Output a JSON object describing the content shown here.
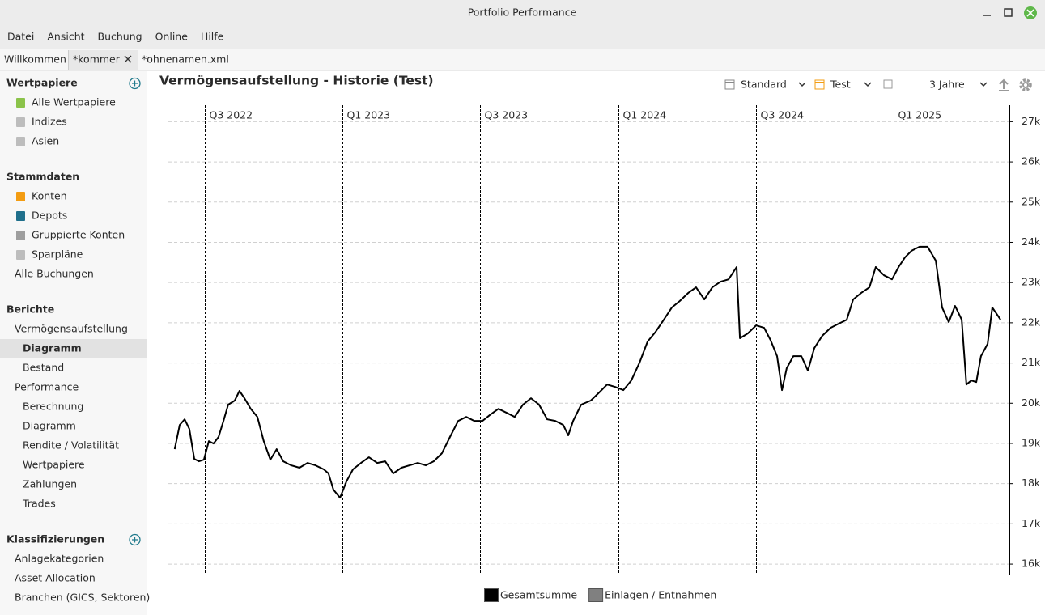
{
  "window": {
    "title": "Portfolio Performance"
  },
  "menu": [
    "Datei",
    "Ansicht",
    "Buchung",
    "Online",
    "Hilfe"
  ],
  "tabs": [
    "Willkommen",
    "*kommer",
    "*ohnenamen.xml"
  ],
  "sidebar": [
    {
      "title": "Wertpapiere",
      "items": [
        {
          "label": "Alle Wertpapiere",
          "level": 1,
          "icon": "#8bc34a"
        },
        {
          "label": "Indizes",
          "level": 1,
          "icon": "#bdbdbd"
        },
        {
          "label": "Asien",
          "level": 1,
          "icon": "#bdbdbd"
        }
      ]
    },
    {
      "title": "Stammdaten",
      "items": [
        {
          "label": "Konten",
          "level": 1,
          "icon": "#f39c12"
        },
        {
          "label": "Depots",
          "level": 1,
          "icon": "#1f6f8b"
        },
        {
          "label": "Gruppierte Konten",
          "level": 1,
          "icon": "#9e9e9e"
        },
        {
          "label": "Sparpläne",
          "level": 1,
          "icon": "#bdbdbd"
        },
        {
          "label": "Alle Buchungen",
          "level": 0
        }
      ]
    },
    {
      "title": "Berichte",
      "items": [
        {
          "label": "Vermögensaufstellung",
          "level": 0
        },
        {
          "label": "Diagramm",
          "level": 1,
          "selected": true
        },
        {
          "label": "Bestand",
          "level": 1
        },
        {
          "label": "Performance",
          "level": 0
        },
        {
          "label": "Berechnung",
          "level": 1
        },
        {
          "label": "Diagramm",
          "level": 1
        },
        {
          "label": "Rendite / Volatilität",
          "level": 1
        },
        {
          "label": "Wertpapiere",
          "level": 1
        },
        {
          "label": "Zahlungen",
          "level": 1
        },
        {
          "label": "Trades",
          "level": 1
        }
      ]
    },
    {
      "title": "Klassifizierungen",
      "items": [
        {
          "label": "Anlagekategorien",
          "level": 0
        },
        {
          "label": "Asset Allocation",
          "level": 0
        },
        {
          "label": "Branchen (GICS, Sektoren)",
          "level": 0
        }
      ]
    }
  ],
  "toolbar": {
    "view": "Standard",
    "filter": "Test",
    "period": "3 Jahre"
  },
  "chart_data": {
    "type": "line",
    "title": "Vermögensaufstellung - Historie (Test)",
    "x": [
      2022.391,
      2022.409,
      2022.427,
      2022.444,
      2022.462,
      2022.479,
      2022.497,
      2022.515,
      2022.532,
      2022.55,
      2022.568,
      2022.585,
      2022.609,
      2022.626,
      2022.644,
      2022.667,
      2022.691,
      2022.714,
      2022.738,
      2022.761,
      2022.785,
      2022.814,
      2022.844,
      2022.873,
      2022.902,
      2022.932,
      2022.949,
      2022.967,
      2022.991,
      2023.014,
      2023.038,
      2023.067,
      2023.096,
      2023.126,
      2023.155,
      2023.184,
      2023.214,
      2023.243,
      2023.273,
      2023.302,
      2023.331,
      2023.361,
      2023.39,
      2023.42,
      2023.449,
      2023.478,
      2023.508,
      2023.537,
      2023.566,
      2023.596,
      2023.625,
      2023.655,
      2023.684,
      2023.713,
      2023.743,
      2023.772,
      2023.801,
      2023.819,
      2023.837,
      2023.866,
      2023.901,
      2023.931,
      2023.96,
      2023.989,
      2024.019,
      2024.048,
      2024.078,
      2024.107,
      2024.136,
      2024.166,
      2024.195,
      2024.224,
      2024.254,
      2024.283,
      2024.313,
      2024.342,
      2024.371,
      2024.401,
      2024.43,
      2024.442,
      2024.471,
      2024.501,
      2024.53,
      2024.553,
      2024.577,
      2024.595,
      2024.612,
      2024.636,
      2024.665,
      2024.689,
      2024.712,
      2024.741,
      2024.771,
      2024.8,
      2024.83,
      2024.853,
      2024.882,
      2024.912,
      2024.935,
      2024.965,
      2024.994,
      2025.018,
      2025.041,
      2025.065,
      2025.094,
      2025.123,
      2025.153,
      2025.176,
      2025.2,
      2025.223,
      2025.247,
      2025.264,
      2025.282,
      2025.3,
      2025.317,
      2025.341,
      2025.358,
      2025.388
    ],
    "series": [
      {
        "color": "#000000",
        "values": [
          18857,
          19460,
          19600,
          19360,
          18615,
          18555,
          18595,
          19058,
          18998,
          19160,
          19560,
          19965,
          20065,
          20305,
          20125,
          19860,
          19660,
          19058,
          18595,
          18857,
          18555,
          18455,
          18395,
          18515,
          18455,
          18355,
          18255,
          17850,
          17650,
          18050,
          18355,
          18515,
          18655,
          18515,
          18555,
          18255,
          18395,
          18455,
          18515,
          18455,
          18555,
          18757,
          19160,
          19560,
          19660,
          19560,
          19560,
          19720,
          19860,
          19760,
          19660,
          19965,
          20125,
          19965,
          19600,
          19560,
          19460,
          19200,
          19560,
          19965,
          20065,
          20265,
          20465,
          20405,
          20325,
          20565,
          21010,
          21533,
          21775,
          22075,
          22380,
          22540,
          22740,
          22880,
          22580,
          22880,
          23020,
          23080,
          23385,
          21615,
          21735,
          21935,
          21875,
          21575,
          21170,
          20325,
          20870,
          21170,
          21170,
          20810,
          21370,
          21675,
          21875,
          21975,
          22075,
          22580,
          22740,
          22880,
          23385,
          23180,
          23080,
          23385,
          23625,
          23790,
          23890,
          23890,
          23545,
          22380,
          22015,
          22420,
          22075,
          20465,
          20565,
          20525,
          21170,
          21475,
          22380,
          22075
        ]
      }
    ],
    "legend": [
      {
        "name": "Gesamtsumme",
        "color": "#000000"
      },
      {
        "name": "Einlagen / Entnahmen",
        "color": "#808080"
      }
    ],
    "xlim": [
      2022.368,
      2025.42
    ],
    "xticks": [
      {
        "value": 2022.5,
        "label": "Q3 2022"
      },
      {
        "value": 2023.0,
        "label": "Q1 2023"
      },
      {
        "value": 2023.5,
        "label": "Q3 2023"
      },
      {
        "value": 2024.0,
        "label": "Q1 2024"
      },
      {
        "value": 2024.5,
        "label": "Q3 2024"
      },
      {
        "value": 2025.0,
        "label": "Q1 2025"
      }
    ],
    "ylim": [
      15740,
      27410
    ],
    "yticks": [
      {
        "value": 16000,
        "label": "16k"
      },
      {
        "value": 17000,
        "label": "17k"
      },
      {
        "value": 18000,
        "label": "18k"
      },
      {
        "value": 19000,
        "label": "19k"
      },
      {
        "value": 20000,
        "label": "20k"
      },
      {
        "value": 21000,
        "label": "21k"
      },
      {
        "value": 22000,
        "label": "22k"
      },
      {
        "value": 23000,
        "label": "23k"
      },
      {
        "value": 24000,
        "label": "24k"
      },
      {
        "value": 25000,
        "label": "25k"
      },
      {
        "value": 26000,
        "label": "26k"
      },
      {
        "value": 27000,
        "label": "27k"
      }
    ],
    "grid": true
  }
}
